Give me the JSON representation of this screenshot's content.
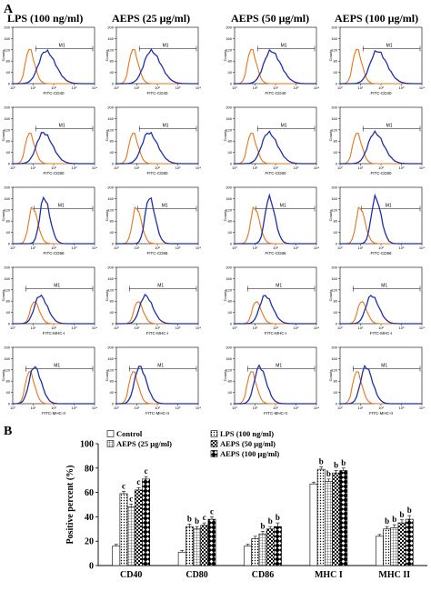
{
  "panel_a_label": "A",
  "panel_b_label": "B",
  "column_headers": [
    "LPS (100 ng/ml)",
    "AEPS (25 μg/ml)",
    "AEPS (50 μg/ml)",
    "AEPS (100 μg/ml)"
  ],
  "row_markers": [
    "FITC-CD40",
    "FITC-CD80",
    "FITC-CD86",
    "FITC-MHC-I",
    "FITC-MHC-II"
  ],
  "histogram_gate_label": "M1",
  "histogram_ylabel": "Counts",
  "histogram_yticks": [
    "0",
    "40",
    "80",
    "120",
    "160",
    "200"
  ],
  "histogram_xticks": [
    "10⁰",
    "10¹",
    "10²",
    "10³",
    "10⁴"
  ],
  "colors": {
    "control": "#e8741a",
    "treated": "#1f2fa8",
    "axis": "#000000"
  },
  "chart_data": {
    "type": "bar",
    "categories": [
      "CD40",
      "CD80",
      "CD86",
      "MHC I",
      "MHC II"
    ],
    "ylabel": "Positive percent (%)",
    "xlabel": "",
    "ylim": [
      0,
      100
    ],
    "yticks": [
      0,
      20,
      40,
      60,
      80,
      100
    ],
    "legend_position": "top",
    "series": [
      {
        "name": "Control",
        "pattern": "white",
        "values": [
          16,
          11,
          16,
          67,
          24
        ],
        "errors": [
          1.5,
          1.5,
          1.5,
          1.5,
          1.5
        ],
        "letters": [
          "",
          "",
          "",
          "",
          ""
        ]
      },
      {
        "name": "LPS (100 ng/ml)",
        "pattern": "dots",
        "values": [
          59,
          32,
          22,
          79,
          30
        ],
        "errors": [
          2,
          2,
          2,
          2,
          2
        ],
        "letters": [
          "c",
          "b",
          "",
          "b",
          "b"
        ]
      },
      {
        "name": "AEPS (25 μg/ml)",
        "pattern": "grid",
        "values": [
          48,
          30,
          26,
          69,
          31
        ],
        "errors": [
          2.5,
          2,
          2,
          2,
          2.5
        ],
        "letters": [
          "c",
          "b",
          "b",
          "b",
          "b"
        ]
      },
      {
        "name": "AEPS (50 μg/ml)",
        "pattern": "checker",
        "values": [
          62,
          33,
          30,
          76,
          35
        ],
        "errors": [
          2,
          2,
          2,
          2,
          2.5
        ],
        "letters": [
          "c",
          "c",
          "b",
          "b",
          "b"
        ]
      },
      {
        "name": "AEPS (100 μg/ml)",
        "pattern": "diamond",
        "values": [
          71,
          38,
          32,
          78,
          38
        ],
        "errors": [
          2,
          2,
          3,
          2,
          3
        ],
        "letters": [
          "c",
          "c",
          "b",
          "b",
          "b"
        ]
      }
    ]
  }
}
